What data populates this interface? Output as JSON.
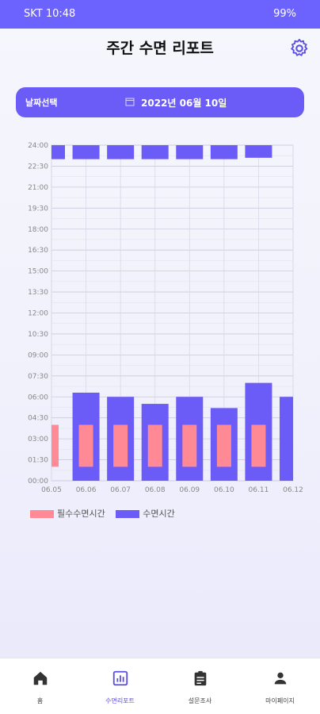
{
  "status_bar": {
    "carrier_time": "SKT 10:48",
    "battery": "99%"
  },
  "header": {
    "title": "주간 수면 리포트"
  },
  "date_picker": {
    "label": "날짜선택",
    "value": "2022년 06월 10일"
  },
  "colors": {
    "primary": "#6c5cf7",
    "sleep_bar": "#6c5cf7",
    "required_bar": "#ff8a95"
  },
  "chart_data": {
    "type": "bar",
    "y_tick_labels": [
      "00:00",
      "01:30",
      "03:00",
      "04:30",
      "06:00",
      "07:30",
      "09:00",
      "10:30",
      "12:00",
      "13:30",
      "15:00",
      "16:30",
      "18:00",
      "19:30",
      "21:00",
      "22:30",
      "24:00"
    ],
    "ylim_hours": [
      0,
      24
    ],
    "categories": [
      "06.05",
      "06.06",
      "06.07",
      "06.08",
      "06.09",
      "06.10",
      "06.11",
      "06.12"
    ],
    "series": [
      {
        "name": "수면시간",
        "bars": [
          {
            "segments": [
              [
                23.0,
                24.0
              ]
            ]
          },
          {
            "segments": [
              [
                0.0,
                6.3
              ],
              [
                23.0,
                24.0
              ]
            ]
          },
          {
            "segments": [
              [
                0.0,
                6.0
              ],
              [
                23.0,
                24.0
              ]
            ]
          },
          {
            "segments": [
              [
                0.0,
                5.5
              ],
              [
                23.0,
                24.0
              ]
            ]
          },
          {
            "segments": [
              [
                0.0,
                6.0
              ],
              [
                23.0,
                24.0
              ]
            ]
          },
          {
            "segments": [
              [
                0.0,
                5.2
              ],
              [
                23.0,
                24.0
              ]
            ]
          },
          {
            "segments": [
              [
                0.0,
                7.0
              ],
              [
                23.1,
                24.0
              ]
            ]
          },
          {
            "segments": [
              [
                0.0,
                6.0
              ]
            ]
          }
        ]
      },
      {
        "name": "필수수면시간",
        "bars": [
          {
            "segments": [
              [
                1.0,
                4.0
              ]
            ]
          },
          {
            "segments": [
              [
                1.0,
                4.0
              ]
            ]
          },
          {
            "segments": [
              [
                1.0,
                4.0
              ]
            ]
          },
          {
            "segments": [
              [
                1.0,
                4.0
              ]
            ]
          },
          {
            "segments": [
              [
                1.0,
                4.0
              ]
            ]
          },
          {
            "segments": [
              [
                1.0,
                4.0
              ]
            ]
          },
          {
            "segments": [
              [
                1.0,
                4.0
              ]
            ]
          },
          {
            "segments": []
          }
        ]
      }
    ],
    "legend": [
      "필수수면시간",
      "수면시간"
    ],
    "grid": true
  },
  "bottom_nav": [
    {
      "label": "홈",
      "icon": "home-icon",
      "active": false
    },
    {
      "label": "수면리포트",
      "icon": "report-icon",
      "active": true
    },
    {
      "label": "설문조사",
      "icon": "clipboard-icon",
      "active": false
    },
    {
      "label": "마이페이지",
      "icon": "person-icon",
      "active": false
    }
  ]
}
